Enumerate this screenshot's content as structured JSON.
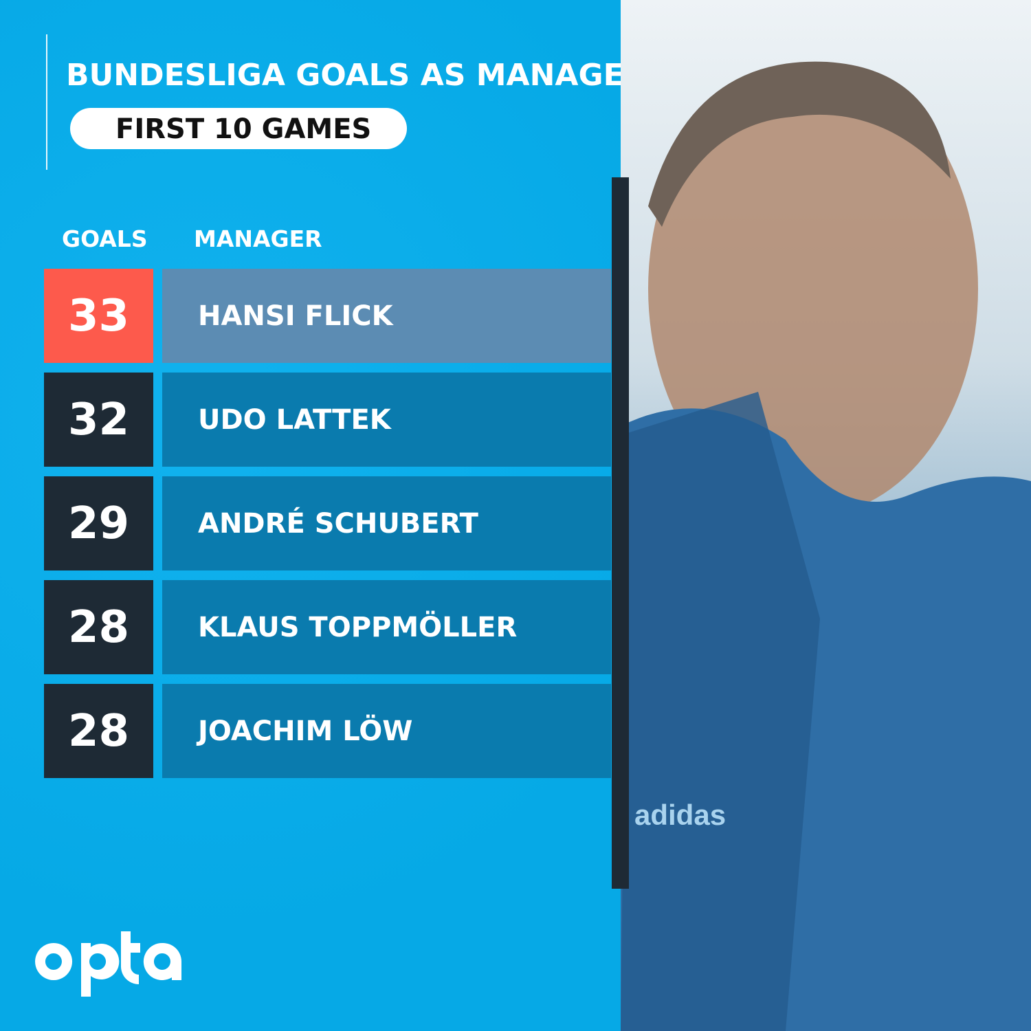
{
  "title": "BUNDESLIGA GOALS AS MANAGER",
  "subtitle": "FIRST 10 GAMES",
  "headers": {
    "goals": "GOALS",
    "manager": "MANAGER"
  },
  "colors": {
    "background": "#0aaeea",
    "highlight_goal": "#fd5a4c",
    "highlight_name": "#5c8cb3",
    "goal_box": "#1e2a35",
    "name_box": "#0a7bae"
  },
  "rows": [
    {
      "goals": "33",
      "manager": "HANSI FLICK",
      "highlight": true
    },
    {
      "goals": "32",
      "manager": "UDO LATTEK",
      "highlight": false
    },
    {
      "goals": "29",
      "manager": "ANDRÉ SCHUBERT",
      "highlight": false
    },
    {
      "goals": "28",
      "manager": "KLAUS TOPPMÖLLER",
      "highlight": false
    },
    {
      "goals": "28",
      "manager": "JOACHIM LÖW",
      "highlight": false
    }
  ],
  "logo": "opta",
  "chart_data": {
    "type": "table",
    "title": "BUNDESLIGA GOALS AS MANAGER",
    "subtitle": "FIRST 10 GAMES",
    "columns": [
      "GOALS",
      "MANAGER"
    ],
    "rows": [
      [
        33,
        "HANSI FLICK"
      ],
      [
        32,
        "UDO LATTEK"
      ],
      [
        29,
        "ANDRÉ SCHUBERT"
      ],
      [
        28,
        "KLAUS TOPPMÖLLER"
      ],
      [
        28,
        "JOACHIM LÖW"
      ]
    ]
  }
}
